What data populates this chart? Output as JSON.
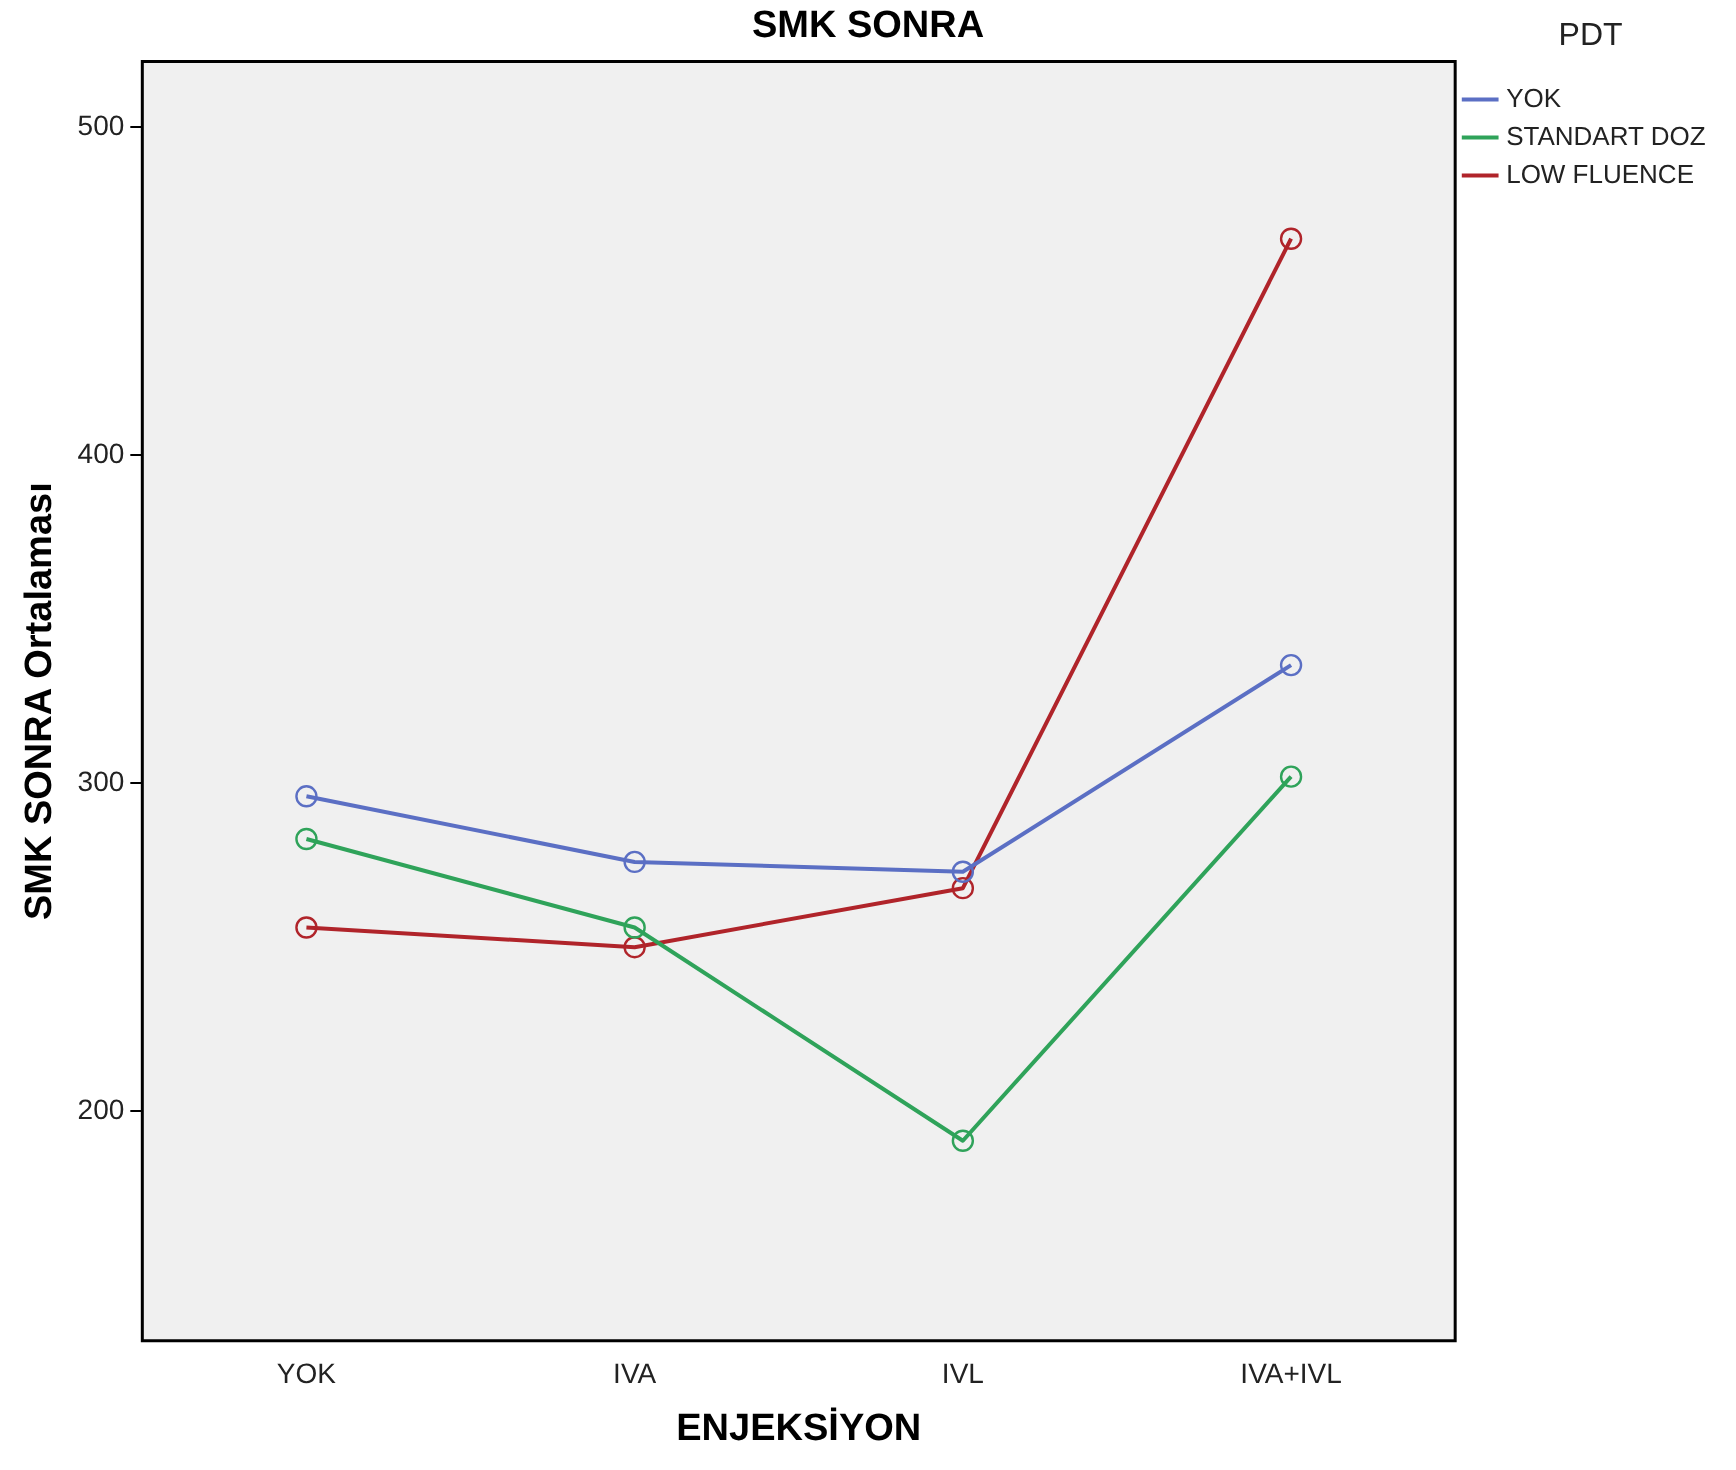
{
  "chart_data": {
    "type": "line",
    "title": "SMK SONRA",
    "xlabel": "ENJEKSİYON",
    "ylabel": "SMK SONRA Ortalaması",
    "legend_title": "PDT",
    "categories": [
      "YOK",
      "IVA",
      "IVL",
      "IVA+IVL"
    ],
    "series": [
      {
        "name": "YOK",
        "color": "#5b6fc4",
        "values": [
          296,
          276,
          273,
          336
        ]
      },
      {
        "name": "STANDART DOZ",
        "color": "#2fa35a",
        "values": [
          283,
          256,
          191,
          302
        ]
      },
      {
        "name": "LOW FLUENCE",
        "color": "#b0242a",
        "values": [
          256,
          250,
          268,
          466
        ]
      }
    ],
    "ylim": [
      130,
      520
    ],
    "yticks": [
      200,
      300,
      400,
      500
    ],
    "grid": false,
    "legend": "right",
    "marker": "circle",
    "line_style": "solid"
  }
}
